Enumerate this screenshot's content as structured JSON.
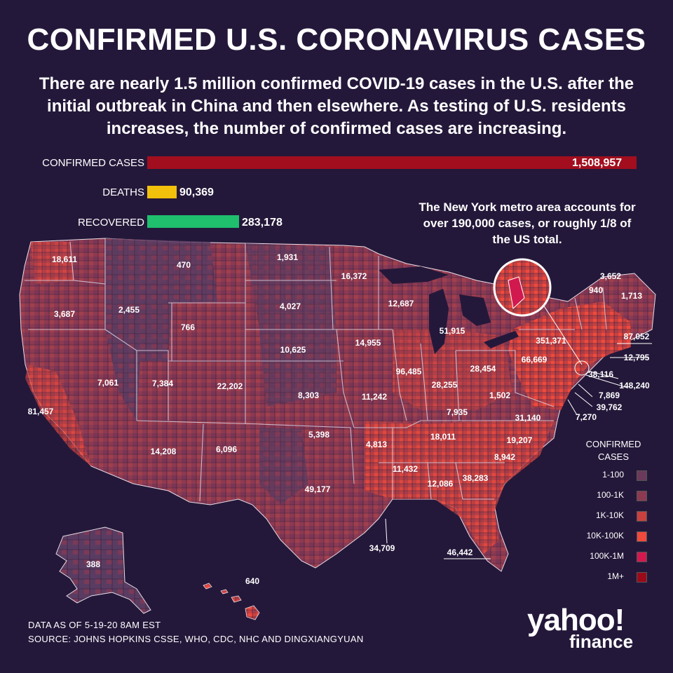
{
  "title": "CONFIRMED U.S. CORONAVIRUS CASES",
  "subtitle": "There are nearly 1.5 million confirmed COVID-19 cases in the U.S. after the initial outbreak in China and then elsewhere. As testing of U.S. residents increases, the number of confirmed cases are increasing.",
  "stats": {
    "confirmed": {
      "label": "CONFIRMED CASES",
      "value": "1,508,957",
      "number": 1508957,
      "color": "#a20e1e"
    },
    "deaths": {
      "label": "DEATHS",
      "value": "90,369",
      "number": 90369,
      "color": "#f2c10b"
    },
    "recovered": {
      "label": "RECOVERED",
      "value": "283,178",
      "number": 283178,
      "color": "#1fbf6e"
    }
  },
  "ny_note": "The New York metro area accounts for over 190,000 cases, or roughly 1/8 of the US total.",
  "state_values": {
    "WA": "18,611",
    "OR": "3,687",
    "ID": "2,455",
    "MT": "470",
    "WY": "766",
    "CA": "81,457",
    "NV": "7,061",
    "UT": "7,384",
    "CO": "22,202",
    "AZ": "14,208",
    "NM": "6,096",
    "ND": "1,931",
    "SD": "4,027",
    "NE": "10,625",
    "KS": "8,303",
    "OK": "5,398",
    "TX": "49,177",
    "MN": "16,372",
    "IA": "14,955",
    "MO": "11,242",
    "AR": "4,813",
    "LA": "34,709",
    "WI": "12,687",
    "IL": "96,485",
    "MS": "11,432",
    "MI": "51,915",
    "IN": "28,255",
    "KY": "7,935",
    "TN": "18,011",
    "AL": "12,086",
    "GA": "38,283",
    "FL": "46,442",
    "OH": "28,454",
    "WV": "1,502",
    "VA": "31,140",
    "NC": "19,207",
    "SC": "8,942",
    "PA": "66,669",
    "NY": "351,371",
    "VT": "940",
    "NH": "3,652",
    "ME": "1,713",
    "MA": "87,052",
    "RI": "12,795",
    "CT": "38,116",
    "NJ": "148,240",
    "DE": "7,869",
    "MD": "39,762",
    "DC": "7,270",
    "AK": "388",
    "HI": "640"
  },
  "legend": {
    "title": "CONFIRMED CASES",
    "items": [
      {
        "label": "1-100",
        "color": "#6b3a5a"
      },
      {
        "label": "100-1K",
        "color": "#8c3a52"
      },
      {
        "label": "1K-10K",
        "color": "#c8413f"
      },
      {
        "label": "10K-100K",
        "color": "#ef4a3d"
      },
      {
        "label": "100K-1M",
        "color": "#d2194f"
      },
      {
        "label": "1M+",
        "color": "#9c0a1a"
      }
    ]
  },
  "footer": {
    "data_as_of": "DATA AS OF 5-19-20 8AM  EST",
    "source": "SOURCE:  JOHNS HOPKINS CSSE, WHO, CDC, NHC AND DINGXIANGYUAN"
  },
  "logo": {
    "line1": "yahoo!",
    "line2": "finance"
  }
}
